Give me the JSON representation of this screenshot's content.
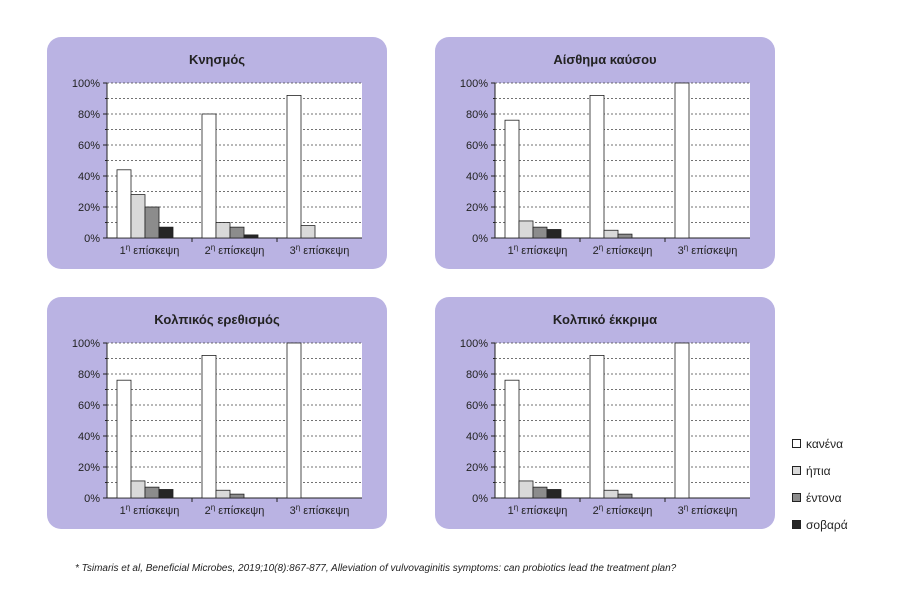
{
  "colors": {
    "panel_bg": "#bab3e3",
    "plot_bg": "#ffffff",
    "series": [
      "#ffffff",
      "#d9d9d9",
      "#8c8c8c",
      "#262626"
    ]
  },
  "legend": {
    "items": [
      {
        "label": "κανένα",
        "color": "#ffffff"
      },
      {
        "label": "ήπια",
        "color": "#d9d9d9"
      },
      {
        "label": "έντονα",
        "color": "#8c8c8c"
      },
      {
        "label": "σοβαρά",
        "color": "#262626"
      }
    ]
  },
  "footnote": "* Tsimaris et al, Beneficial Microbes, 2019;10(8):867-877, Alleviation of vulvovaginitis symptoms: can probiotics lead the treatment plan?",
  "chart_data": [
    {
      "type": "bar",
      "title": "Κνησμός",
      "categories": [
        {
          "base": "1",
          "sup": "η",
          "text": " επίσκεψη"
        },
        {
          "base": "2",
          "sup": "η",
          "text": " επίσκεψη"
        },
        {
          "base": "3",
          "sup": "η",
          "text": " επίσκεψη"
        }
      ],
      "series": [
        {
          "name": "κανένα",
          "values": [
            44,
            80,
            92
          ]
        },
        {
          "name": "ήπια",
          "values": [
            28,
            10,
            8
          ]
        },
        {
          "name": "έντονα",
          "values": [
            20,
            7,
            0
          ]
        },
        {
          "name": "σοβαρά",
          "values": [
            7,
            2,
            0
          ]
        }
      ],
      "yticks": [
        "0%",
        "20%",
        "40%",
        "60%",
        "80%",
        "100%"
      ],
      "ylim": [
        0,
        100
      ],
      "grid": true
    },
    {
      "type": "bar",
      "title": "Αίσθημα καύσου",
      "categories": [
        {
          "base": "1",
          "sup": "η",
          "text": " επίσκεψη"
        },
        {
          "base": "2",
          "sup": "η",
          "text": " επίσκεψη"
        },
        {
          "base": "3",
          "sup": "η",
          "text": " επίσκεψη"
        }
      ],
      "series": [
        {
          "name": "κανένα",
          "values": [
            76,
            92,
            100
          ]
        },
        {
          "name": "ήπια",
          "values": [
            11,
            5,
            0
          ]
        },
        {
          "name": "έντονα",
          "values": [
            7,
            2.5,
            0
          ]
        },
        {
          "name": "σοβαρά",
          "values": [
            5.5,
            0,
            0
          ]
        }
      ],
      "yticks": [
        "0%",
        "20%",
        "40%",
        "60%",
        "80%",
        "100%"
      ],
      "ylim": [
        0,
        100
      ],
      "grid": true
    },
    {
      "type": "bar",
      "title": "Κολπικός ερεθισμός",
      "categories": [
        {
          "base": "1",
          "sup": "η",
          "text": " επίσκεψη"
        },
        {
          "base": "2",
          "sup": "η",
          "text": " επίσκεψη"
        },
        {
          "base": "3",
          "sup": "η",
          "text": " επίσκεψη"
        }
      ],
      "series": [
        {
          "name": "κανένα",
          "values": [
            76,
            92,
            100
          ]
        },
        {
          "name": "ήπια",
          "values": [
            11,
            5,
            0
          ]
        },
        {
          "name": "έντονα",
          "values": [
            7,
            2.5,
            0
          ]
        },
        {
          "name": "σοβαρά",
          "values": [
            5.5,
            0,
            0
          ]
        }
      ],
      "yticks": [
        "0%",
        "20%",
        "40%",
        "60%",
        "80%",
        "100%"
      ],
      "ylim": [
        0,
        100
      ],
      "grid": true
    },
    {
      "type": "bar",
      "title": "Κολπικό έκκριμα",
      "categories": [
        {
          "base": "1",
          "sup": "η",
          "text": " επίσκεψη"
        },
        {
          "base": "2",
          "sup": "η",
          "text": " επίσκεψη"
        },
        {
          "base": "3",
          "sup": "η",
          "text": " επίσκεψη"
        }
      ],
      "series": [
        {
          "name": "κανένα",
          "values": [
            76,
            92,
            100
          ]
        },
        {
          "name": "ήπια",
          "values": [
            11,
            5,
            0
          ]
        },
        {
          "name": "έντονα",
          "values": [
            7,
            2.5,
            0
          ]
        },
        {
          "name": "σοβαρά",
          "values": [
            5.5,
            0,
            0
          ]
        }
      ],
      "yticks": [
        "0%",
        "20%",
        "40%",
        "60%",
        "80%",
        "100%"
      ],
      "ylim": [
        0,
        100
      ],
      "grid": true
    }
  ]
}
